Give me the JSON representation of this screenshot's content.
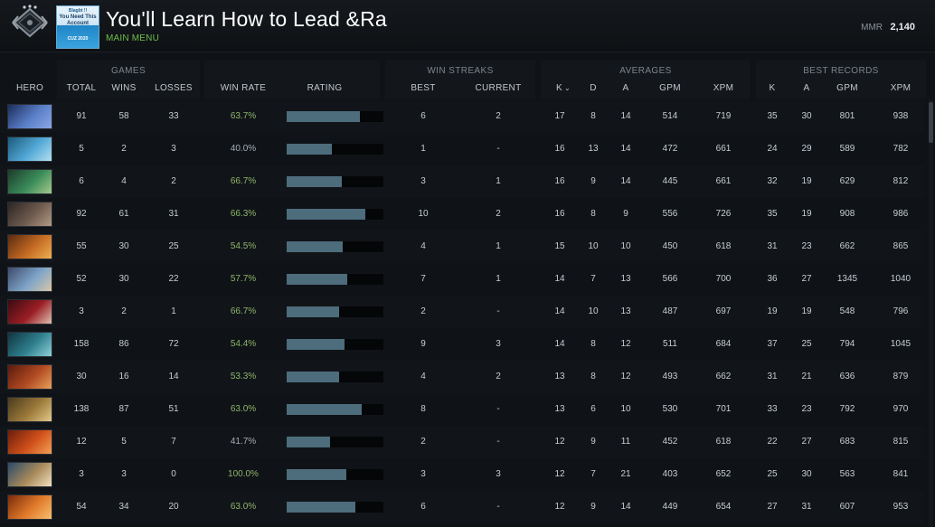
{
  "header": {
    "profile_name": "You'll Learn How to Lead &Ra",
    "breadcrumb": "MAIN MENU",
    "mmr_label": "MMR",
    "mmr_value": "2,140",
    "avatar_text": [
      "Blagbt !!",
      "You Need This",
      "Account",
      "CUZ\n2020"
    ],
    "rank_icon": "rank-medal-icon"
  },
  "groups": {
    "games": "GAMES",
    "win_streaks": "WIN STREAKS",
    "averages": "AVERAGES",
    "best_records": "BEST RECORDS"
  },
  "columns": {
    "hero": "HERO",
    "total": "TOTAL",
    "wins": "WINS",
    "losses": "LOSSES",
    "win_rate": "WIN RATE",
    "rating": "RATING",
    "best": "BEST",
    "current": "CURRENT",
    "avg_k": "K",
    "avg_d": "D",
    "avg_a": "A",
    "avg_gpm": "GPM",
    "avg_xpm": "XPM",
    "best_k": "K",
    "best_a": "A",
    "best_gpm": "GPM",
    "best_xpm": "XPM"
  },
  "colors": {
    "accent_green": "#6fbf4d",
    "win_rate_green": "#8fb36a",
    "rating_bar": "#4d6c7c"
  },
  "rows": [
    {
      "hero_color": [
        "#1c2c5a",
        "#5a7fc8",
        "#8da8e6"
      ],
      "total": "91",
      "wins": "58",
      "losses": "33",
      "win_rate": "63.7%",
      "rating": 0.76,
      "best": "6",
      "current": "2",
      "k": "17",
      "d": "8",
      "a": "14",
      "gpm": "514",
      "xpm": "719",
      "bk": "35",
      "ba": "30",
      "bgpm": "801",
      "bxpm": "938"
    },
    {
      "hero_color": [
        "#1b5a7a",
        "#52a8d6",
        "#b5e0f0"
      ],
      "total": "5",
      "wins": "2",
      "losses": "3",
      "win_rate": "40.0%",
      "rating": 0.47,
      "best": "1",
      "current": "-",
      "k": "16",
      "d": "13",
      "a": "14",
      "gpm": "472",
      "xpm": "661",
      "bk": "24",
      "ba": "29",
      "bgpm": "589",
      "bxpm": "782"
    },
    {
      "hero_color": [
        "#1d3b2a",
        "#3a8c5a",
        "#a6c98c"
      ],
      "total": "6",
      "wins": "4",
      "losses": "2",
      "win_rate": "66.7%",
      "rating": 0.57,
      "best": "3",
      "current": "1",
      "k": "16",
      "d": "9",
      "a": "14",
      "gpm": "445",
      "xpm": "661",
      "bk": "32",
      "ba": "19",
      "bgpm": "629",
      "bxpm": "812"
    },
    {
      "hero_color": [
        "#2b2523",
        "#6e5a4e",
        "#b29a86"
      ],
      "total": "92",
      "wins": "61",
      "losses": "31",
      "win_rate": "66.3%",
      "rating": 0.81,
      "best": "10",
      "current": "2",
      "k": "16",
      "d": "8",
      "a": "9",
      "gpm": "556",
      "xpm": "726",
      "bk": "35",
      "ba": "19",
      "bgpm": "908",
      "bxpm": "986"
    },
    {
      "hero_color": [
        "#5a2a10",
        "#c36a23",
        "#f0b053"
      ],
      "total": "55",
      "wins": "30",
      "losses": "25",
      "win_rate": "54.5%",
      "rating": 0.58,
      "best": "4",
      "current": "1",
      "k": "15",
      "d": "10",
      "a": "10",
      "gpm": "450",
      "xpm": "618",
      "bk": "31",
      "ba": "23",
      "bgpm": "662",
      "bxpm": "865"
    },
    {
      "hero_color": [
        "#3d4a6b",
        "#7ea4c8",
        "#d9c7a8"
      ],
      "total": "52",
      "wins": "30",
      "losses": "22",
      "win_rate": "57.7%",
      "rating": 0.63,
      "best": "7",
      "current": "1",
      "k": "14",
      "d": "7",
      "a": "13",
      "gpm": "566",
      "xpm": "700",
      "bk": "36",
      "ba": "27",
      "bgpm": "1345",
      "bxpm": "1040"
    },
    {
      "hero_color": [
        "#3a0b10",
        "#9a1e25",
        "#e0c0b0"
      ],
      "total": "3",
      "wins": "2",
      "losses": "1",
      "win_rate": "66.7%",
      "rating": 0.54,
      "best": "2",
      "current": "-",
      "k": "14",
      "d": "10",
      "a": "13",
      "gpm": "487",
      "xpm": "697",
      "bk": "19",
      "ba": "19",
      "bgpm": "548",
      "bxpm": "796"
    },
    {
      "hero_color": [
        "#0f3440",
        "#2f7f8e",
        "#8fd0d8"
      ],
      "total": "158",
      "wins": "86",
      "losses": "72",
      "win_rate": "54.4%",
      "rating": 0.6,
      "best": "9",
      "current": "3",
      "k": "14",
      "d": "8",
      "a": "12",
      "gpm": "511",
      "xpm": "684",
      "bk": "37",
      "ba": "25",
      "bgpm": "794",
      "bxpm": "1045"
    },
    {
      "hero_color": [
        "#5a1a0e",
        "#b04a22",
        "#e8a05a"
      ],
      "total": "30",
      "wins": "16",
      "losses": "14",
      "win_rate": "53.3%",
      "rating": 0.54,
      "best": "4",
      "current": "2",
      "k": "13",
      "d": "8",
      "a": "12",
      "gpm": "493",
      "xpm": "662",
      "bk": "31",
      "ba": "21",
      "bgpm": "636",
      "bxpm": "879"
    },
    {
      "hero_color": [
        "#4a3a1e",
        "#9c7a3a",
        "#e3c98a"
      ],
      "total": "138",
      "wins": "87",
      "losses": "51",
      "win_rate": "63.0%",
      "rating": 0.78,
      "best": "8",
      "current": "-",
      "k": "13",
      "d": "6",
      "a": "10",
      "gpm": "530",
      "xpm": "701",
      "bk": "33",
      "ba": "23",
      "bgpm": "792",
      "bxpm": "970"
    },
    {
      "hero_color": [
        "#6a1d0c",
        "#d0501a",
        "#f4a055"
      ],
      "total": "12",
      "wins": "5",
      "losses": "7",
      "win_rate": "41.7%",
      "rating": 0.45,
      "best": "2",
      "current": "-",
      "k": "12",
      "d": "9",
      "a": "11",
      "gpm": "452",
      "xpm": "618",
      "bk": "22",
      "ba": "27",
      "bgpm": "683",
      "bxpm": "815"
    },
    {
      "hero_color": [
        "#2a4a6a",
        "#a88a5a",
        "#f0e0c0"
      ],
      "total": "3",
      "wins": "3",
      "losses": "0",
      "win_rate": "100.0%",
      "rating": 0.62,
      "best": "3",
      "current": "3",
      "k": "12",
      "d": "7",
      "a": "21",
      "gpm": "403",
      "xpm": "652",
      "bk": "25",
      "ba": "30",
      "bgpm": "563",
      "bxpm": "841"
    },
    {
      "hero_color": [
        "#7a2a0a",
        "#e07a2a",
        "#f8c070"
      ],
      "total": "54",
      "wins": "34",
      "losses": "20",
      "win_rate": "63.0%",
      "rating": 0.71,
      "best": "6",
      "current": "-",
      "k": "12",
      "d": "9",
      "a": "14",
      "gpm": "449",
      "xpm": "654",
      "bk": "27",
      "ba": "31",
      "bgpm": "607",
      "bxpm": "953"
    }
  ]
}
